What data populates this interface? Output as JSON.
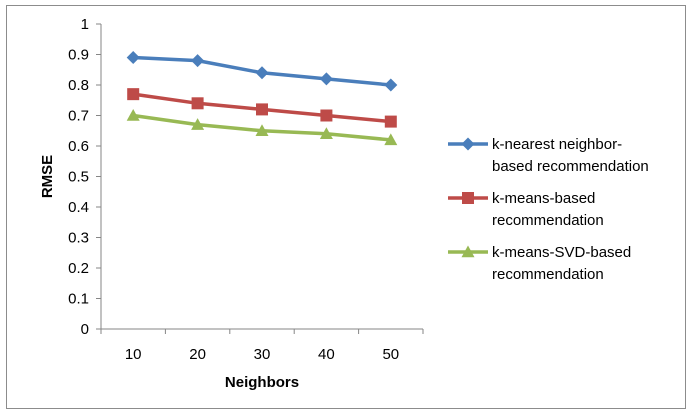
{
  "chart_data": {
    "type": "line",
    "title": "",
    "xlabel": "Neighbors",
    "ylabel": "RMSE",
    "categories": [
      "10",
      "20",
      "30",
      "40",
      "50"
    ],
    "ylim": [
      0,
      1
    ],
    "yticks": [
      "0",
      "0.1",
      "0.2",
      "0.3",
      "0.4",
      "0.5",
      "0.6",
      "0.7",
      "0.8",
      "0.9",
      "1"
    ],
    "grid": false,
    "legend_position": "right",
    "series": [
      {
        "name": "k-nearest neighbor-based recommendation",
        "legend_lines": [
          "k-nearest neighbor-",
          "based recommendation"
        ],
        "values": [
          0.89,
          0.88,
          0.84,
          0.82,
          0.8
        ],
        "color": "#4a7ebb",
        "marker": "diamond"
      },
      {
        "name": "k-means-based recommendation",
        "legend_lines": [
          "k-means-based",
          "recommendation"
        ],
        "values": [
          0.77,
          0.74,
          0.72,
          0.7,
          0.68
        ],
        "color": "#be4b48",
        "marker": "square"
      },
      {
        "name": "k-means-SVD-based recommendation",
        "legend_lines": [
          "k-means-SVD-based",
          "recommendation"
        ],
        "values": [
          0.7,
          0.67,
          0.65,
          0.64,
          0.62
        ],
        "color": "#98b954",
        "marker": "triangle"
      }
    ]
  }
}
